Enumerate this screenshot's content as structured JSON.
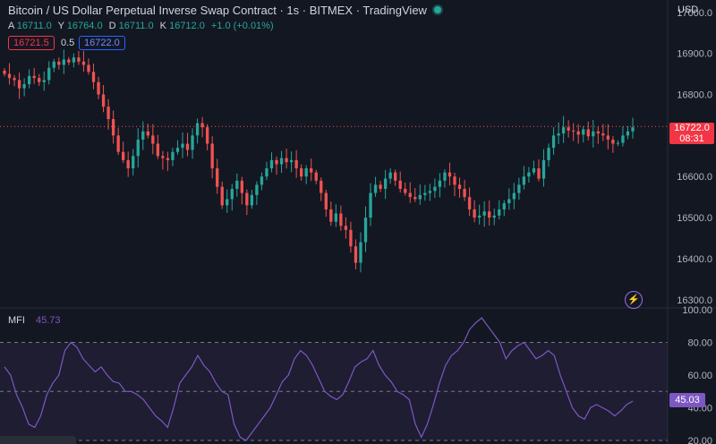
{
  "header": {
    "title": "Bitcoin / US Dollar Perpetual Inverse Swap Contract · 1s · BITMEX · TradingView",
    "ohlc": [
      {
        "label": "A",
        "value": "16711.0"
      },
      {
        "label": "Y",
        "value": "16764.0"
      },
      {
        "label": "D",
        "value": "16711.0"
      },
      {
        "label": "K",
        "value": "16712.0"
      }
    ],
    "change": "+1.0 (+0.01%)"
  },
  "trade": {
    "sell": "16721.5",
    "spread": "0.5",
    "buy": "16722.0"
  },
  "price_axis": {
    "currency": "USD",
    "ticks": [
      "17000.0",
      "16900.0",
      "16800.0",
      "16700.0",
      "16600.0",
      "16500.0",
      "16400.0",
      "16300.0"
    ],
    "last_price": "16722.0",
    "countdown": "08:31"
  },
  "mfi": {
    "label": "MFI",
    "value": "45.73",
    "axis_value": "45.03",
    "ticks": [
      "100.00",
      "80.00",
      "60.00",
      "40.00",
      "20.00"
    ]
  },
  "colors": {
    "up": "#26a69a",
    "down": "#ef5350",
    "mfi": "#7e57c2",
    "background": "#131722"
  },
  "icons": {
    "alert": "lightning-icon"
  },
  "chart_data": [
    {
      "type": "candlestick",
      "ylim": [
        16280,
        17030
      ],
      "last": 16722.0,
      "closes": [
        16850,
        16840,
        16835,
        16815,
        16825,
        16845,
        16840,
        16830,
        16835,
        16865,
        16880,
        16872,
        16885,
        16878,
        16890,
        16880,
        16872,
        16855,
        16830,
        16800,
        16770,
        16740,
        16700,
        16660,
        16640,
        16620,
        16650,
        16690,
        16710,
        16700,
        16680,
        16650,
        16645,
        16640,
        16660,
        16670,
        16680,
        16665,
        16700,
        16730,
        16720,
        16680,
        16620,
        16575,
        16530,
        16545,
        16570,
        16590,
        16560,
        16530,
        16555,
        16580,
        16600,
        16620,
        16640,
        16630,
        16645,
        16635,
        16640,
        16620,
        16600,
        16620,
        16610,
        16590,
        16560,
        16520,
        16490,
        16510,
        16480,
        16470,
        16430,
        16390,
        16440,
        16500,
        16560,
        16580,
        16570,
        16595,
        16610,
        16590,
        16570,
        16560,
        16550,
        16545,
        16555,
        16560,
        16565,
        16575,
        16590,
        16610,
        16600,
        16580,
        16570,
        16550,
        16520,
        16500,
        16505,
        16515,
        16500,
        16505,
        16520,
        16535,
        16545,
        16560,
        16580,
        16600,
        16610,
        16620,
        16595,
        16640,
        16670,
        16700,
        16705,
        16720,
        16712,
        16710,
        16702,
        16715,
        16698,
        16710,
        16705,
        16700,
        16690,
        16680,
        16682,
        16700,
        16710,
        16720
      ]
    },
    {
      "type": "line",
      "name": "MFI",
      "ylim": [
        20,
        100
      ],
      "bands": [
        80,
        50,
        20
      ],
      "values": [
        65,
        60,
        48,
        40,
        30,
        28,
        35,
        48,
        55,
        60,
        75,
        80,
        77,
        70,
        66,
        62,
        65,
        60,
        56,
        55,
        50,
        50,
        48,
        45,
        40,
        35,
        32,
        28,
        40,
        55,
        60,
        65,
        72,
        66,
        62,
        55,
        50,
        48,
        30,
        22,
        20,
        25,
        30,
        35,
        40,
        48,
        56,
        60,
        70,
        75,
        72,
        66,
        58,
        50,
        47,
        45,
        48,
        56,
        65,
        68,
        70,
        75,
        66,
        60,
        56,
        50,
        48,
        45,
        30,
        22,
        30,
        42,
        55,
        66,
        72,
        75,
        80,
        88,
        92,
        95,
        90,
        85,
        80,
        70,
        75,
        78,
        80,
        75,
        70,
        72,
        75,
        72,
        60,
        50,
        40,
        35,
        33,
        40,
        42,
        40,
        38,
        35,
        38,
        42,
        44
      ]
    }
  ]
}
